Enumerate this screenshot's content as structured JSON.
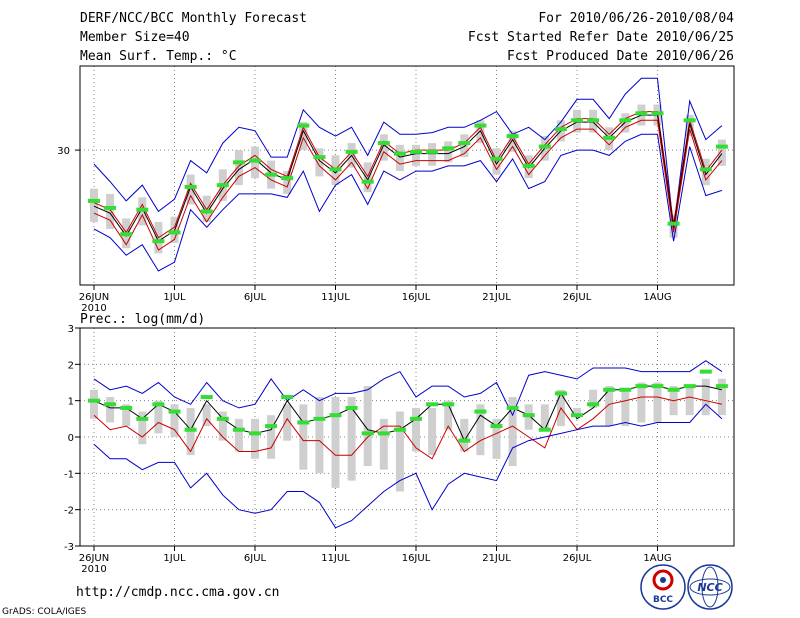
{
  "header": {
    "title": "DERF/NCC/BCC Monthly Forecast",
    "member_size": "Member Size=40",
    "variable1": "Mean Surf. Temp.: °C",
    "period": "For 2010/06/26-2010/08/04",
    "started": "Fcst Started Refer Date 2010/06/25",
    "produced": "Fcst Produced Date 2010/06/26"
  },
  "footer": {
    "url": "http://cmdp.ncc.cma.gov.cn",
    "credit": "GrADS: COLA/IGES",
    "logo1_text": "BCC",
    "logo2_text": "NCC"
  },
  "colors": {
    "range": "#0000cc",
    "member_line": "#cc0000",
    "ensemble": "#000000",
    "bar": "#cfcfcf",
    "marker": "#33dd33"
  },
  "chart_data": [
    {
      "type": "line",
      "title": "Mean Surf. Temp.: °C",
      "x_labels": [
        "26JUN",
        "1JUL",
        "6JUL",
        "11JUL",
        "16JUL",
        "21JUL",
        "26JUL",
        "1AUG"
      ],
      "x_year_label": "2010",
      "y_ticks": [
        30
      ],
      "ylim": [
        22.3,
        34.8
      ],
      "n_days": 40,
      "series": [
        {
          "name": "max",
          "values": [
            29.2,
            28.2,
            27.1,
            28.0,
            26.5,
            27.2,
            29.4,
            28.7,
            30.4,
            31.3,
            31.1,
            29.6,
            29.6,
            32.3,
            31.3,
            30.8,
            31.3,
            29.7,
            31.6,
            30.9,
            30.9,
            31.0,
            31.3,
            31.3,
            31.7,
            32.2,
            30.9,
            31.3,
            30.6,
            31.6,
            32.9,
            32.9,
            31.8,
            33.2,
            34.1,
            34.1,
            25.5,
            32.8,
            30.6,
            31.4
          ]
        },
        {
          "name": "median",
          "values": [
            27.0,
            26.6,
            25.3,
            26.9,
            25.0,
            25.6,
            28.1,
            26.6,
            28.0,
            29.1,
            29.7,
            28.9,
            28.5,
            31.3,
            29.6,
            28.9,
            29.9,
            28.5,
            30.5,
            29.8,
            30.0,
            30.0,
            30.0,
            30.4,
            31.3,
            29.4,
            30.8,
            29.2,
            30.3,
            31.3,
            31.8,
            31.8,
            30.9,
            31.8,
            32.2,
            32.2,
            25.8,
            31.7,
            28.8,
            30.0
          ]
        },
        {
          "name": "ensemble",
          "values": [
            26.8,
            26.4,
            25.1,
            26.7,
            24.8,
            25.4,
            27.9,
            26.4,
            27.8,
            28.9,
            29.5,
            28.7,
            28.3,
            31.1,
            29.4,
            28.7,
            29.7,
            28.3,
            30.3,
            29.6,
            29.8,
            29.8,
            29.8,
            30.2,
            31.1,
            29.2,
            30.6,
            29.0,
            30.1,
            31.1,
            31.6,
            31.6,
            30.7,
            31.6,
            32.0,
            32.0,
            25.6,
            31.5,
            28.6,
            29.8
          ]
        },
        {
          "name": "member",
          "values": [
            26.4,
            26.0,
            24.6,
            26.3,
            24.3,
            24.9,
            27.4,
            25.9,
            27.3,
            28.5,
            29.0,
            28.3,
            27.9,
            30.7,
            29.1,
            28.3,
            29.3,
            27.8,
            29.9,
            29.2,
            29.4,
            29.4,
            29.4,
            29.8,
            30.7,
            28.9,
            30.2,
            28.6,
            29.7,
            30.7,
            31.2,
            31.2,
            30.3,
            31.3,
            31.7,
            31.7,
            25.3,
            31.2,
            28.3,
            29.4
          ]
        },
        {
          "name": "min",
          "values": [
            25.5,
            25.0,
            24.0,
            24.6,
            23.1,
            23.6,
            26.6,
            25.6,
            26.6,
            27.5,
            27.5,
            27.5,
            27.3,
            28.8,
            26.5,
            28.0,
            28.6,
            26.9,
            28.8,
            28.3,
            28.8,
            28.8,
            29.1,
            29.1,
            29.4,
            28.2,
            29.5,
            27.8,
            28.2,
            29.7,
            30.0,
            30.0,
            29.7,
            30.5,
            30.9,
            30.9,
            24.8,
            30.2,
            27.4,
            27.7
          ]
        }
      ],
      "bars": {
        "top": [
          27.8,
          27.5,
          26.1,
          27.3,
          25.9,
          26.2,
          28.6,
          27.4,
          28.9,
          30.0,
          30.2,
          29.4,
          28.8,
          31.6,
          30.1,
          29.7,
          30.4,
          29.3,
          30.9,
          30.3,
          30.3,
          30.4,
          30.5,
          30.9,
          31.7,
          30.1,
          31.1,
          29.7,
          30.8,
          31.7,
          32.3,
          32.3,
          31.3,
          32.1,
          32.6,
          32.6,
          26.3,
          32.0,
          29.5,
          30.6
        ],
        "bottom": [
          25.9,
          25.5,
          24.4,
          25.7,
          24.1,
          24.7,
          26.9,
          25.9,
          27.1,
          28.0,
          28.4,
          27.8,
          27.5,
          30.0,
          28.5,
          28.0,
          29.0,
          27.6,
          29.4,
          28.8,
          29.1,
          29.1,
          29.3,
          29.6,
          30.4,
          28.6,
          29.9,
          28.4,
          29.4,
          30.5,
          31.0,
          31.0,
          30.0,
          31.0,
          31.4,
          31.4,
          25.0,
          30.8,
          28.0,
          29.1
        ]
      },
      "markers": [
        27.1,
        26.7,
        25.2,
        26.6,
        24.8,
        25.3,
        27.9,
        26.5,
        28.0,
        29.3,
        29.4,
        28.6,
        28.4,
        31.4,
        29.6,
        28.9,
        29.9,
        28.2,
        30.4,
        29.8,
        29.9,
        29.9,
        30.1,
        30.4,
        31.4,
        29.5,
        30.8,
        29.1,
        30.2,
        31.2,
        31.7,
        31.7,
        30.7,
        31.7,
        32.1,
        32.1,
        25.8,
        31.7,
        28.9,
        30.2
      ]
    },
    {
      "type": "line",
      "title": "Prec.: log(mm/d)",
      "x_labels": [
        "26JUN",
        "1JUL",
        "6JUL",
        "11JUL",
        "16JUL",
        "21JUL",
        "26JUL",
        "1AUG"
      ],
      "x_year_label": "2010",
      "y_ticks": [
        3,
        2,
        1,
        0,
        -1,
        -2,
        -3
      ],
      "ylim": [
        -3,
        3
      ],
      "n_days": 40,
      "series": [
        {
          "name": "max",
          "values": [
            1.6,
            1.3,
            1.4,
            1.2,
            1.5,
            1.1,
            0.9,
            1.5,
            1.0,
            0.8,
            0.9,
            1.6,
            1.0,
            1.3,
            1.0,
            1.2,
            1.2,
            1.3,
            1.6,
            1.8,
            1.1,
            1.4,
            1.4,
            1.1,
            1.2,
            1.5,
            0.6,
            1.7,
            1.8,
            1.7,
            1.6,
            1.9,
            1.9,
            1.9,
            1.8,
            1.8,
            1.8,
            1.8,
            2.1,
            1.8
          ]
        },
        {
          "name": "ensemble",
          "values": [
            1.0,
            0.8,
            0.8,
            0.5,
            0.9,
            0.7,
            0.2,
            1.0,
            0.5,
            0.2,
            0.1,
            0.2,
            1.0,
            0.4,
            0.5,
            0.6,
            0.8,
            0.2,
            0.1,
            0.2,
            0.5,
            0.9,
            0.9,
            -0.1,
            0.6,
            0.3,
            0.8,
            0.6,
            0.2,
            1.2,
            0.5,
            0.8,
            1.3,
            1.3,
            1.4,
            1.4,
            1.3,
            1.4,
            1.4,
            1.3
          ]
        },
        {
          "name": "member",
          "values": [
            0.6,
            0.2,
            0.3,
            0.0,
            0.4,
            0.2,
            -0.4,
            0.5,
            0.0,
            -0.4,
            -0.4,
            -0.3,
            0.5,
            -0.1,
            -0.1,
            -0.5,
            -0.5,
            0.0,
            0.3,
            0.3,
            -0.3,
            -0.6,
            0.3,
            -0.4,
            -0.1,
            0.1,
            0.3,
            0.0,
            -0.3,
            0.8,
            0.2,
            0.5,
            0.9,
            1.0,
            1.1,
            1.1,
            1.0,
            1.1,
            1.0,
            0.9
          ]
        },
        {
          "name": "min",
          "values": [
            -0.2,
            -0.6,
            -0.6,
            -0.9,
            -0.7,
            -0.7,
            -1.4,
            -1.0,
            -1.6,
            -2.0,
            -2.1,
            -2.0,
            -1.5,
            -1.5,
            -1.8,
            -2.5,
            -2.3,
            -1.9,
            -1.5,
            -1.2,
            -1.0,
            -2.0,
            -1.3,
            -1.0,
            -1.1,
            -1.2,
            -0.3,
            -0.1,
            0.0,
            0.1,
            0.2,
            0.3,
            0.3,
            0.4,
            0.3,
            0.4,
            0.4,
            0.4,
            0.9,
            0.5
          ]
        }
      ],
      "bars": {
        "top": [
          1.3,
          1.1,
          0.9,
          0.7,
          1.0,
          0.9,
          0.8,
          0.9,
          0.7,
          0.5,
          0.5,
          0.6,
          0.9,
          0.9,
          1.1,
          1.1,
          1.1,
          1.4,
          0.5,
          0.7,
          0.8,
          0.8,
          1.0,
          0.5,
          0.9,
          0.5,
          1.1,
          0.9,
          0.9,
          1.3,
          0.8,
          1.3,
          1.4,
          1.3,
          1.5,
          1.5,
          1.4,
          1.4,
          1.6,
          1.6
        ],
        "bottom": [
          0.5,
          0.4,
          0.3,
          -0.2,
          0.1,
          0.0,
          -0.5,
          0.3,
          -0.1,
          -0.4,
          -0.6,
          -0.6,
          -0.1,
          -0.9,
          -1.0,
          -1.4,
          -1.2,
          -0.8,
          -0.9,
          -1.5,
          -0.4,
          -0.5,
          0.2,
          -0.4,
          -0.5,
          -0.6,
          -0.8,
          0.2,
          0.2,
          0.3,
          0.6,
          0.8,
          0.3,
          0.3,
          0.4,
          0.4,
          0.6,
          0.6,
          0.6,
          0.6
        ]
      },
      "markers": [
        1.0,
        0.9,
        0.8,
        0.5,
        0.9,
        0.7,
        0.2,
        1.1,
        0.5,
        0.2,
        0.1,
        0.3,
        1.1,
        0.4,
        0.5,
        0.6,
        0.8,
        0.1,
        0.1,
        0.2,
        0.5,
        0.9,
        0.9,
        -0.1,
        0.7,
        0.3,
        0.8,
        0.6,
        0.2,
        1.2,
        0.6,
        0.9,
        1.3,
        1.3,
        1.4,
        1.4,
        1.3,
        1.4,
        1.8,
        1.4
      ]
    }
  ]
}
